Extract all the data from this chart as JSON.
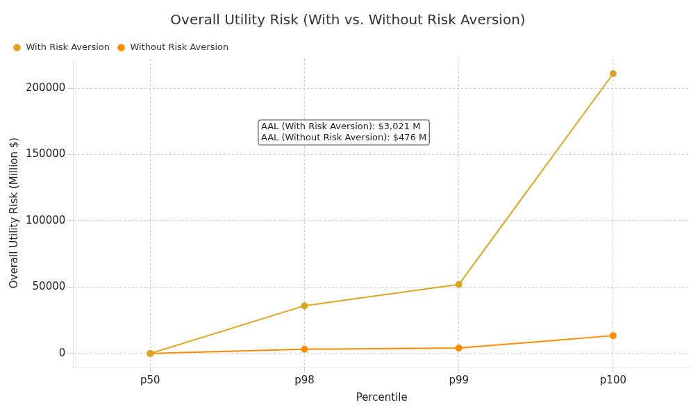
{
  "chart_data": {
    "type": "line",
    "title": "Overall Utility Risk (With vs. Without Risk Aversion)",
    "xlabel": "Percentile",
    "ylabel": "Overall Utility Risk (Million $)",
    "categories": [
      "p50",
      "p98",
      "p99",
      "p100"
    ],
    "series": [
      {
        "name": "With Risk Aversion",
        "color": "#daa520",
        "values": [
          0,
          36000,
          52000,
          211000
        ]
      },
      {
        "name": "Without Risk Aversion",
        "color": "#ff8c00",
        "values": [
          0,
          3200,
          4100,
          13500
        ]
      }
    ],
    "ylim": [
      -10000,
      222000
    ],
    "yticks": [
      0,
      50000,
      100000,
      150000,
      200000
    ],
    "annotations": [
      "AAL (With Risk Aversion): $3,021 M",
      "AAL (Without Risk Aversion): $476 M"
    ],
    "grid": true,
    "legend": "top left",
    "marker": "circle",
    "line_style": "solid"
  }
}
